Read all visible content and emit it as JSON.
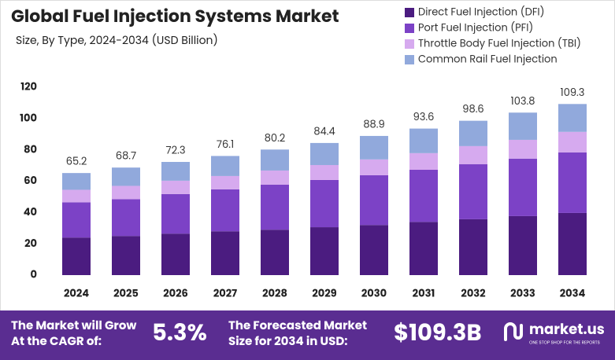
{
  "chart_data": {
    "type": "stacked_bar",
    "title": "Global Fuel Injection Systems Market",
    "subtitle": "Size, By Type, 2024-2034 (USD Billion)",
    "categories": [
      "2024",
      "2025",
      "2026",
      "2027",
      "2028",
      "2029",
      "2030",
      "2031",
      "2032",
      "2033",
      "2034"
    ],
    "series": [
      {
        "name": "Direct Fuel Injection (DFI)",
        "color": "#4b1c80",
        "values": [
          24,
          25,
          26.5,
          28,
          29,
          30.6,
          32,
          34,
          35.7,
          37.7,
          39.7
        ]
      },
      {
        "name": "Port Fuel Injection (PFI)",
        "color": "#7c42c6",
        "values": [
          22.5,
          23.5,
          25.3,
          26.8,
          28.8,
          30.2,
          31.8,
          33.3,
          35.2,
          36.7,
          38.7
        ]
      },
      {
        "name": "Throttle Body Fuel Injection (TBI)",
        "color": "#d6aaef",
        "values": [
          8,
          8.5,
          8.5,
          8.5,
          9,
          9.5,
          10.1,
          10.6,
          11.5,
          12,
          13.1
        ]
      },
      {
        "name": "Common Rail Fuel Injection",
        "color": "#91a9dc",
        "values": [
          10.7,
          11.7,
          12.0,
          12.8,
          13.4,
          14.1,
          15.0,
          15.7,
          16.2,
          17.4,
          17.8
        ]
      }
    ],
    "totals": [
      65.2,
      68.7,
      72.3,
      76.1,
      80.2,
      84.4,
      88.9,
      93.6,
      98.6,
      103.8,
      109.3
    ],
    "ylim": [
      0,
      120
    ],
    "yticks": [
      0,
      20,
      40,
      60,
      80,
      100,
      120
    ],
    "grid": false
  },
  "footer": {
    "cagr_text": [
      "The Market will Grow",
      "At the CAGR of:"
    ],
    "cagr": "5.3%",
    "forecast_text": [
      "The Forecasted Market",
      "Size for 2034 in USD:"
    ],
    "forecast": "$109.3B",
    "brand": "market.us",
    "tagline": "ONE STOP SHOP FOR THE REPORTS"
  }
}
